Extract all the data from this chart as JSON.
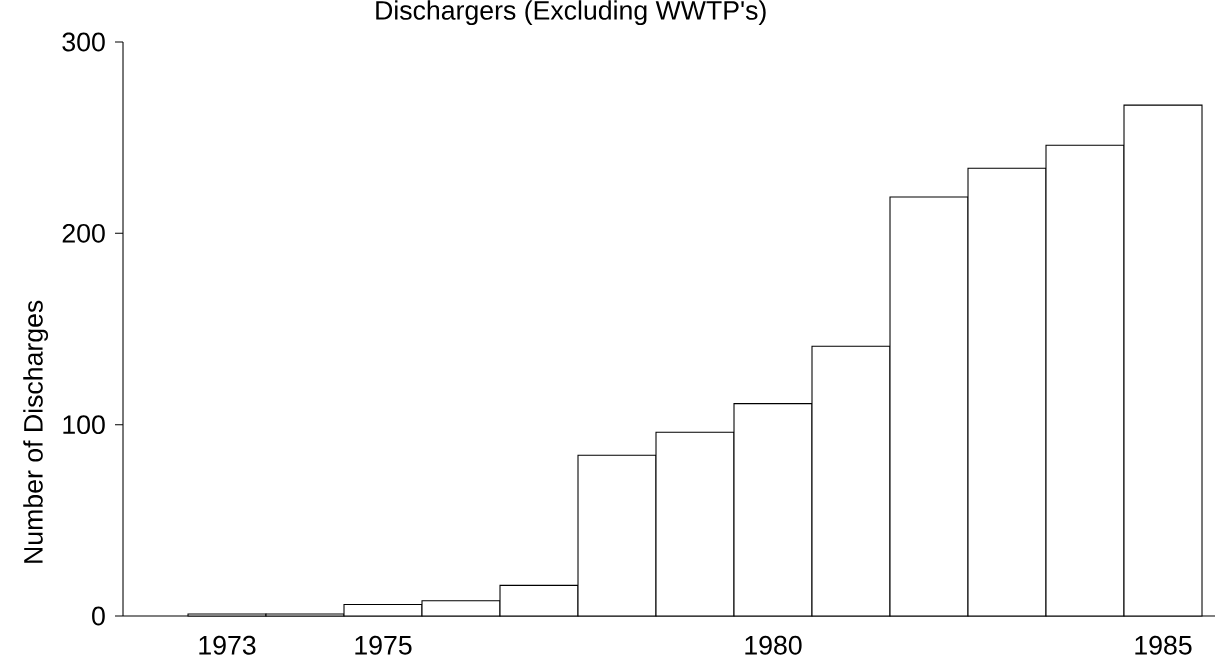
{
  "chart_data": {
    "type": "bar",
    "title": "Dischargers (Excluding WWTP's)",
    "ylabel": "Number of Discharges",
    "categories": [
      "1973",
      null,
      "1975",
      null,
      null,
      null,
      null,
      "1980",
      null,
      null,
      null,
      null,
      "1985"
    ],
    "values": [
      1,
      1,
      6,
      8,
      16,
      84,
      96,
      111,
      141,
      219,
      234,
      246,
      267
    ],
    "color": "#ffffff",
    "ylim": [
      0,
      300
    ],
    "yticks": [
      0,
      100,
      200,
      300
    ]
  }
}
